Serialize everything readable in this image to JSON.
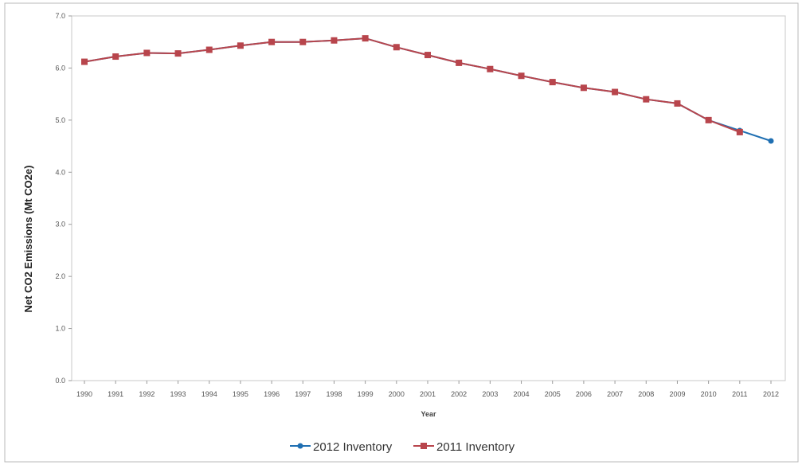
{
  "chart_data": {
    "type": "line",
    "xlabel": "Year",
    "ylabel": "Net CO2 Emissions (Mt CO2e)",
    "ylim": [
      0,
      7
    ],
    "yticks": [
      "0.0",
      "1.0",
      "2.0",
      "3.0",
      "4.0",
      "5.0",
      "6.0",
      "7.0"
    ],
    "categories": [
      "1990",
      "1991",
      "1992",
      "1993",
      "1994",
      "1995",
      "1996",
      "1997",
      "1998",
      "1999",
      "2000",
      "2001",
      "2002",
      "2003",
      "2004",
      "2005",
      "2006",
      "2007",
      "2008",
      "2009",
      "2010",
      "2011",
      "2012"
    ],
    "grid": false,
    "legend_position": "bottom",
    "series": [
      {
        "name": "2012 Inventory",
        "color": "#1f6fb2",
        "marker": "circle",
        "values": [
          6.12,
          6.22,
          6.29,
          6.28,
          6.35,
          6.43,
          6.5,
          6.5,
          6.53,
          6.57,
          6.4,
          6.25,
          6.1,
          5.98,
          5.85,
          5.73,
          5.62,
          5.54,
          5.4,
          5.32,
          5.0,
          4.8,
          4.6
        ]
      },
      {
        "name": "2011 Inventory",
        "color": "#b8454c",
        "marker": "square",
        "values": [
          6.12,
          6.22,
          6.29,
          6.28,
          6.35,
          6.43,
          6.5,
          6.5,
          6.53,
          6.57,
          6.4,
          6.25,
          6.1,
          5.98,
          5.85,
          5.73,
          5.62,
          5.54,
          5.4,
          5.32,
          5.0,
          4.77,
          null
        ]
      }
    ]
  }
}
